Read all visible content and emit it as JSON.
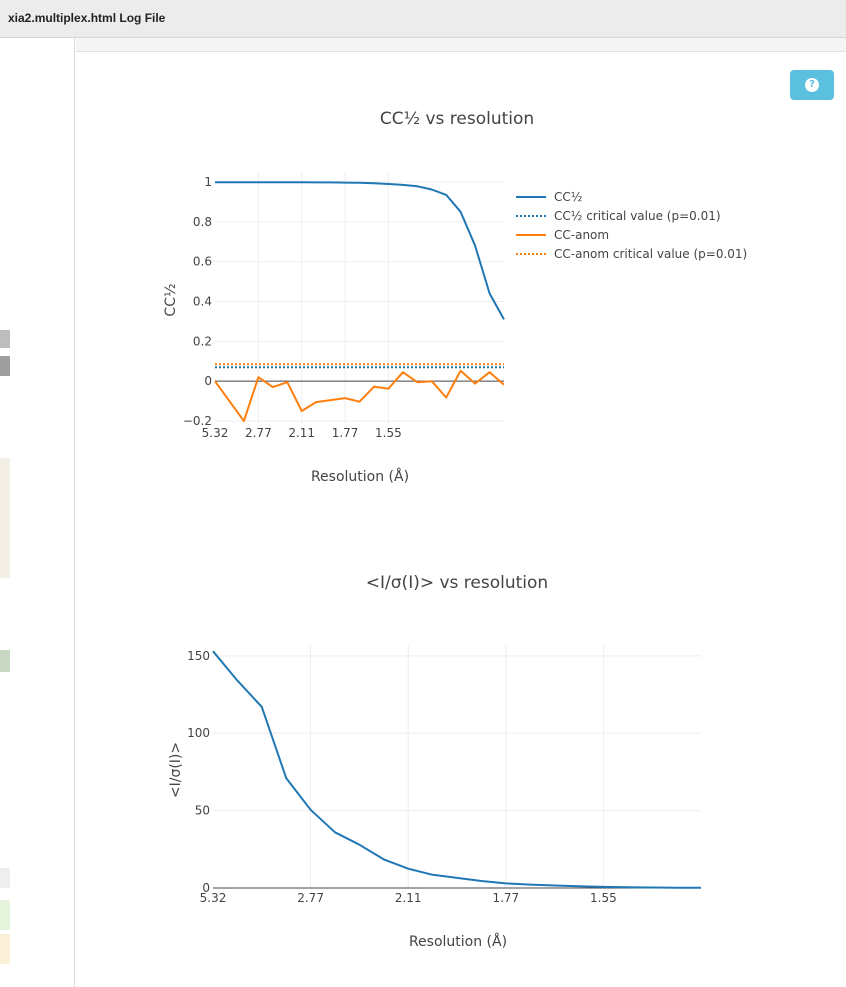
{
  "window": {
    "title": "xia2.multiplex.html Log File"
  },
  "help_button": {
    "icon": "question-circle-icon",
    "color": "#5bc0de"
  },
  "chart_data": [
    {
      "type": "line",
      "title": "CC½ vs resolution",
      "xlabel": "Resolution (Å)",
      "ylabel": "CC½",
      "x_tick_labels": [
        "5.32",
        "2.77",
        "2.11",
        "1.77",
        "1.55"
      ],
      "y_ticks": [
        -0.2,
        0,
        0.2,
        0.4,
        0.6,
        0.8,
        1
      ],
      "y_tick_labels": [
        "−0.2",
        "0",
        "0.2",
        "0.4",
        "0.6",
        "0.8",
        "1"
      ],
      "xlim": [
        0,
        20
      ],
      "ylim": [
        -0.21,
        1.05
      ],
      "grid": true,
      "legend_position": "right",
      "series": [
        {
          "name": "CC½",
          "color": "#1f77b4",
          "style": "solid",
          "x": [
            0,
            1,
            2,
            3,
            4,
            5,
            6,
            7,
            8,
            9,
            10,
            11,
            12,
            13,
            14,
            15,
            16,
            17,
            18,
            19,
            20
          ],
          "y": [
            0.999,
            0.999,
            0.999,
            0.999,
            0.999,
            0.999,
            0.999,
            0.998,
            0.998,
            0.997,
            0.996,
            0.994,
            0.99,
            0.985,
            0.978,
            0.962,
            0.935,
            0.85,
            0.68,
            0.44,
            0.31
          ]
        },
        {
          "name": "CC½ critical value (p=0.01)",
          "color": "#1f77b4",
          "style": "dotted",
          "x": [
            0,
            20
          ],
          "y": [
            0.07,
            0.07
          ]
        },
        {
          "name": "CC-anom",
          "color": "#ff7f0e",
          "style": "solid",
          "x": [
            0,
            1,
            2,
            3,
            4,
            5,
            6,
            7,
            8,
            9,
            10,
            11,
            12,
            13,
            14,
            15,
            16,
            17,
            18,
            19,
            20
          ],
          "y": [
            0.0,
            -0.1,
            -0.2,
            0.02,
            -0.03,
            -0.005,
            -0.15,
            -0.105,
            -0.095,
            -0.085,
            -0.103,
            -0.028,
            -0.038,
            0.045,
            -0.005,
            0.0,
            -0.082,
            0.052,
            -0.012,
            0.045,
            -0.018
          ]
        },
        {
          "name": "CC-anom critical value (p=0.01)",
          "color": "#ff7f0e",
          "style": "dotted",
          "x": [
            0,
            20
          ],
          "y": [
            0.085,
            0.085
          ]
        }
      ]
    },
    {
      "type": "line",
      "title": "<I/σ(I)> vs resolution",
      "xlabel": "Resolution (Å)",
      "ylabel": "<I/σ(I)>",
      "x_tick_labels": [
        "5.32",
        "2.77",
        "2.11",
        "1.77",
        "1.55"
      ],
      "y_ticks": [
        0,
        50,
        100,
        150
      ],
      "y_tick_labels": [
        "0",
        "50",
        "100",
        "150"
      ],
      "xlim": [
        0,
        20
      ],
      "ylim": [
        0,
        157
      ],
      "grid": true,
      "series": [
        {
          "name": "",
          "color": "#1f77b4",
          "style": "solid",
          "x": [
            0,
            1,
            2,
            3,
            4,
            5,
            6,
            7,
            8,
            9,
            10,
            11,
            12,
            13,
            14,
            15,
            16,
            17,
            18,
            19,
            20
          ],
          "y": [
            153,
            134,
            117,
            71,
            50.5,
            36,
            28,
            18.5,
            12.5,
            8.5,
            6.5,
            4.5,
            3,
            2.2,
            1.6,
            1.1,
            0.7,
            0.45,
            0.3,
            0.2,
            0.12
          ]
        }
      ]
    }
  ]
}
